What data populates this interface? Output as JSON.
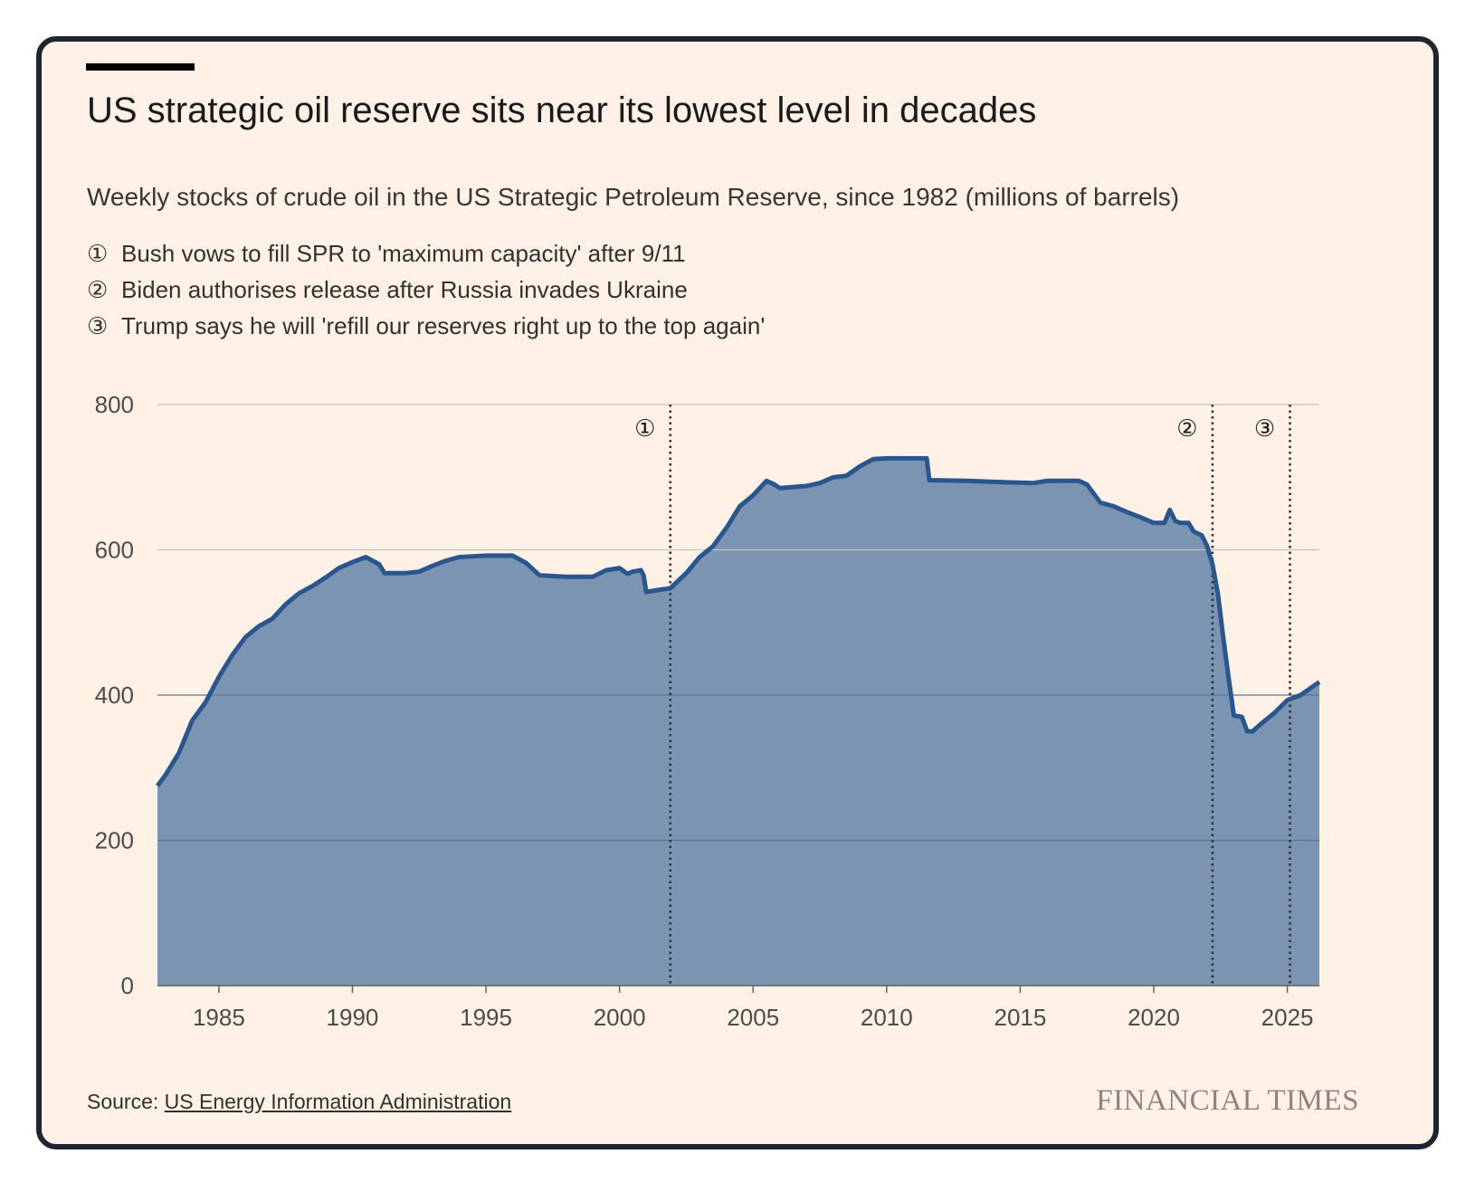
{
  "title": "US strategic oil reserve sits near its lowest level in decades",
  "subtitle": "Weekly stocks of crude oil in the US Strategic Petroleum Reserve, since 1982 (millions of barrels)",
  "notes": [
    {
      "num": "①",
      "text": "Bush vows to fill SPR to 'maximum capacity' after 9/11"
    },
    {
      "num": "②",
      "text": "Biden authorises release after Russia invades Ukraine"
    },
    {
      "num": "③",
      "text": "Trump says he will 'refill our reserves right up to the top again'"
    }
  ],
  "source": {
    "label": "Source:",
    "link": "US Energy Information Administration"
  },
  "brand": "FINANCIAL TIMES",
  "colors": {
    "area_fill": "#7b94b2",
    "line": "#2a568f",
    "grid": "#ccc1b7",
    "marker": "#33302e",
    "background": "#fff1e5"
  },
  "chart_data": {
    "type": "area",
    "xlim": [
      1982.7,
      2026.2
    ],
    "ylim": [
      0,
      800
    ],
    "yticks": [
      0,
      200,
      400,
      600,
      800
    ],
    "xticks": [
      1985,
      1990,
      1995,
      2000,
      2005,
      2010,
      2015,
      2020,
      2025
    ],
    "grid": true,
    "markers": [
      {
        "label": "①",
        "x": 2001.9
      },
      {
        "label": "②",
        "x": 2022.2
      },
      {
        "label": "③",
        "x": 2025.1
      }
    ],
    "series": [
      {
        "values": [
          [
            1982.7,
            275
          ],
          [
            1983.0,
            290
          ],
          [
            1983.5,
            320
          ],
          [
            1984.0,
            365
          ],
          [
            1984.5,
            390
          ],
          [
            1985.0,
            425
          ],
          [
            1985.5,
            455
          ],
          [
            1986.0,
            480
          ],
          [
            1986.5,
            495
          ],
          [
            1987.0,
            505
          ],
          [
            1987.5,
            525
          ],
          [
            1988.0,
            540
          ],
          [
            1988.5,
            550
          ],
          [
            1989.0,
            562
          ],
          [
            1989.5,
            575
          ],
          [
            1990.0,
            583
          ],
          [
            1990.5,
            590
          ],
          [
            1991.0,
            580
          ],
          [
            1991.2,
            568
          ],
          [
            1992.0,
            568
          ],
          [
            1992.5,
            570
          ],
          [
            1993.0,
            578
          ],
          [
            1993.5,
            585
          ],
          [
            1994.0,
            590
          ],
          [
            1995.0,
            592
          ],
          [
            1996.0,
            592
          ],
          [
            1996.5,
            582
          ],
          [
            1997.0,
            565
          ],
          [
            1998.0,
            563
          ],
          [
            1999.0,
            563
          ],
          [
            1999.5,
            572
          ],
          [
            2000.0,
            575
          ],
          [
            2000.3,
            567
          ],
          [
            2000.5,
            570
          ],
          [
            2000.8,
            572
          ],
          [
            2000.9,
            565
          ],
          [
            2001.0,
            542
          ],
          [
            2001.5,
            545
          ],
          [
            2001.9,
            547
          ],
          [
            2002.5,
            568
          ],
          [
            2003.0,
            590
          ],
          [
            2003.5,
            605
          ],
          [
            2004.0,
            630
          ],
          [
            2004.5,
            660
          ],
          [
            2005.0,
            675
          ],
          [
            2005.5,
            695
          ],
          [
            2005.8,
            690
          ],
          [
            2006.0,
            685
          ],
          [
            2007.0,
            688
          ],
          [
            2007.5,
            692
          ],
          [
            2008.0,
            700
          ],
          [
            2008.5,
            702
          ],
          [
            2009.0,
            715
          ],
          [
            2009.5,
            725
          ],
          [
            2010.0,
            726
          ],
          [
            2011.5,
            726
          ],
          [
            2011.6,
            696
          ],
          [
            2013.0,
            695
          ],
          [
            2014.5,
            693
          ],
          [
            2015.5,
            692
          ],
          [
            2016.0,
            695
          ],
          [
            2017.2,
            695
          ],
          [
            2017.5,
            690
          ],
          [
            2018.0,
            665
          ],
          [
            2018.5,
            660
          ],
          [
            2019.0,
            652
          ],
          [
            2019.5,
            645
          ],
          [
            2020.0,
            637
          ],
          [
            2020.4,
            637
          ],
          [
            2020.6,
            655
          ],
          [
            2020.8,
            640
          ],
          [
            2021.0,
            637
          ],
          [
            2021.3,
            637
          ],
          [
            2021.5,
            625
          ],
          [
            2021.8,
            620
          ],
          [
            2022.0,
            605
          ],
          [
            2022.2,
            580
          ],
          [
            2022.4,
            540
          ],
          [
            2022.6,
            480
          ],
          [
            2022.8,
            425
          ],
          [
            2023.0,
            372
          ],
          [
            2023.3,
            370
          ],
          [
            2023.5,
            350
          ],
          [
            2023.7,
            350
          ],
          [
            2024.0,
            360
          ],
          [
            2024.5,
            375
          ],
          [
            2025.0,
            393
          ],
          [
            2025.5,
            400
          ],
          [
            2026.0,
            413
          ],
          [
            2026.2,
            418
          ]
        ]
      }
    ]
  }
}
